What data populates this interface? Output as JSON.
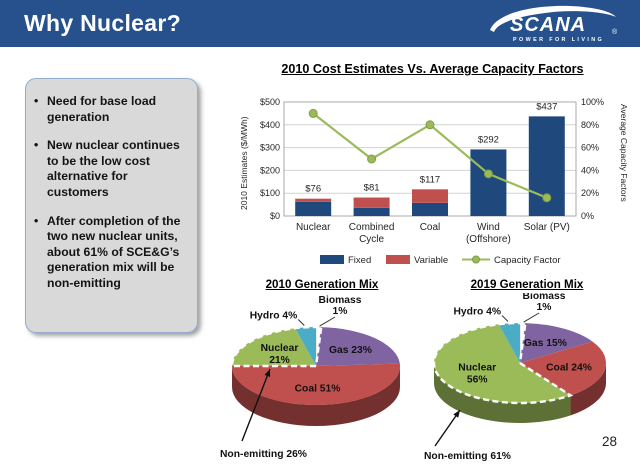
{
  "slide": {
    "title": "Why Nuclear?",
    "page_number": "28"
  },
  "logo": {
    "name": "SCANA",
    "registered": "®",
    "tagline": "POWER FOR LIVING"
  },
  "bullets": {
    "items": [
      "Need for base load generation",
      "New nuclear continues to be the low cost alternative for customers",
      "After completion of the two new nuclear units, about 61% of SCE&G’s generation mix will be non-emitting"
    ]
  },
  "colors": {
    "header_blue": "#26518C",
    "fixed_blue": "#1F497D",
    "variable_red": "#C0504D",
    "capacity_green": "#9BBB59",
    "gas_purple": "#8064A2",
    "hydro_cyan": "#4BACC6",
    "panel_gray": "#D9D9D9",
    "panel_border": "#93ACD0"
  },
  "chart_data": [
    {
      "type": "bar",
      "title": "2010 Cost Estimates Vs. Average Capacity Factors",
      "categories": [
        "Nuclear",
        "Combined Cycle",
        "Coal",
        "Wind (Offshore)",
        "Solar (PV)"
      ],
      "category_lines": [
        [
          "Nuclear"
        ],
        [
          "Combined",
          "Cycle"
        ],
        [
          "Coal"
        ],
        [
          "Wind",
          "(Offshore)"
        ],
        [
          "Solar (PV)"
        ]
      ],
      "series": [
        {
          "name": "Fixed",
          "type": "bar",
          "color": "#1F497D",
          "values": [
            62,
            36,
            58,
            292,
            437
          ]
        },
        {
          "name": "Variable",
          "type": "bar",
          "color": "#C0504D",
          "values": [
            14,
            45,
            59,
            0,
            0
          ]
        },
        {
          "name": "Capacity Factor",
          "type": "line",
          "axis": "right",
          "color": "#9BBB59",
          "values": [
            90,
            50,
            80,
            37,
            16
          ]
        }
      ],
      "bar_total_labels": [
        "$76",
        "$81",
        "$117",
        "$292",
        "$437"
      ],
      "ylabel_left": "2010 Estimates ($/MWh)",
      "ylabel_right": "Average Capacity Factors",
      "yticks_left": [
        "$0",
        "$100",
        "$200",
        "$300",
        "$400",
        "$500"
      ],
      "yticks_right": [
        "0%",
        "20%",
        "40%",
        "60%",
        "80%",
        "100%"
      ],
      "ylim_left": [
        0,
        500
      ],
      "ylim_right": [
        0,
        100
      ],
      "grid": true,
      "legend": [
        "Fixed",
        "Variable",
        "Capacity Factor"
      ],
      "legend_position": "bottom"
    },
    {
      "type": "pie",
      "title": "2010 Generation Mix",
      "slices": [
        {
          "name": "Biomass",
          "value": 1,
          "color": "#FFFFFF",
          "label_pos": "out-top"
        },
        {
          "name": "Gas",
          "value": 23,
          "color": "#8064A2",
          "label_pos": "inside"
        },
        {
          "name": "Coal",
          "value": 51,
          "color": "#C0504D",
          "label_pos": "inside"
        },
        {
          "name": "Nuclear",
          "value": 21,
          "color": "#9BBB59",
          "label_pos": "inside2"
        },
        {
          "name": "Hydro",
          "value": 4,
          "color": "#4BACC6",
          "label_pos": "out-left"
        }
      ],
      "non_emitting": {
        "label": "Non-emitting 26%",
        "value": 26,
        "covers": [
          "Nuclear",
          "Hydro",
          "Biomass"
        ]
      }
    },
    {
      "type": "pie",
      "title": "2019 Generation  Mix",
      "slices": [
        {
          "name": "Biomass",
          "value": 1,
          "color": "#FFFFFF",
          "label_pos": "out-top"
        },
        {
          "name": "Gas",
          "value": 15,
          "color": "#8064A2",
          "label_pos": "inside"
        },
        {
          "name": "Coal",
          "value": 24,
          "color": "#C0504D",
          "label_pos": "inside"
        },
        {
          "name": "Nuclear",
          "value": 56,
          "color": "#9BBB59",
          "label_pos": "inside2"
        },
        {
          "name": "Hydro",
          "value": 4,
          "color": "#4BACC6",
          "label_pos": "out-left"
        }
      ],
      "non_emitting": {
        "label": "Non-emitting 61%",
        "value": 61,
        "covers": [
          "Nuclear",
          "Hydro",
          "Biomass"
        ]
      }
    }
  ]
}
